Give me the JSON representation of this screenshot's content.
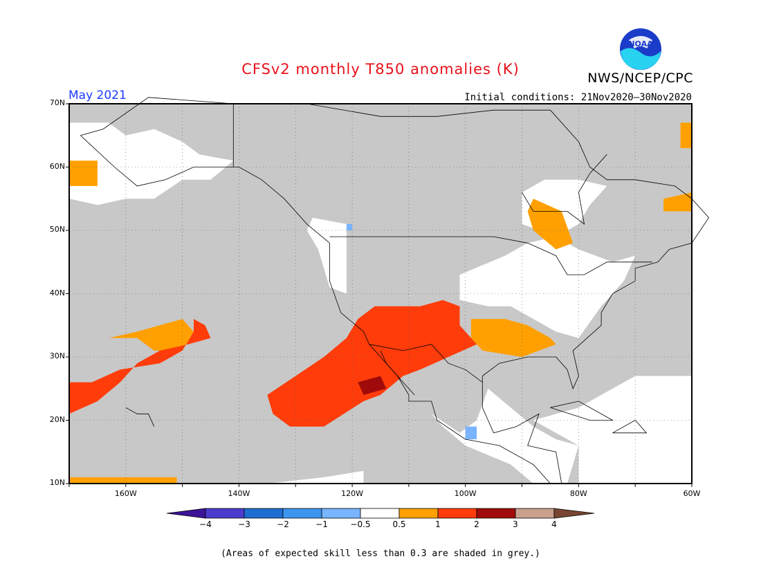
{
  "header": {
    "title": "CFSv2 monthly T850 anomalies (K)",
    "organization": "NWS/NCEP/CPC",
    "month": "May 2021",
    "initial_conditions": "Initial conditions: 21Nov2020–30Nov2020",
    "logo_text": "NOAA"
  },
  "map": {
    "lon_range": [
      -170,
      -60
    ],
    "lat_range": [
      10,
      70
    ],
    "lat_labels": [
      "70N",
      "60N",
      "50N",
      "40N",
      "30N",
      "20N",
      "10N"
    ],
    "lon_labels": [
      "160W",
      "140W",
      "120W",
      "100W",
      "80W",
      "60W"
    ],
    "colors": {
      "grey": "#c8c8c8",
      "white": "#ffffff",
      "orange": "#ffa000",
      "red": "#ff3c0a",
      "dark_red": "#a00a0a",
      "light_blue": "#78b4ff"
    }
  },
  "colorbar": {
    "colors": [
      "#3c1496",
      "#4b3ccd",
      "#1e6ed2",
      "#3c96f0",
      "#78b4ff",
      "#ffffff",
      "#ffa000",
      "#ff3c0a",
      "#a00a0a",
      "#c8a08c",
      "#784632"
    ],
    "labels": [
      "−4",
      "−3",
      "−2",
      "−1",
      "−0.5",
      "0.5",
      "1",
      "2",
      "3",
      "4"
    ]
  },
  "footnote": "(Areas of expected skill less than 0.3 are shaded in grey.)"
}
